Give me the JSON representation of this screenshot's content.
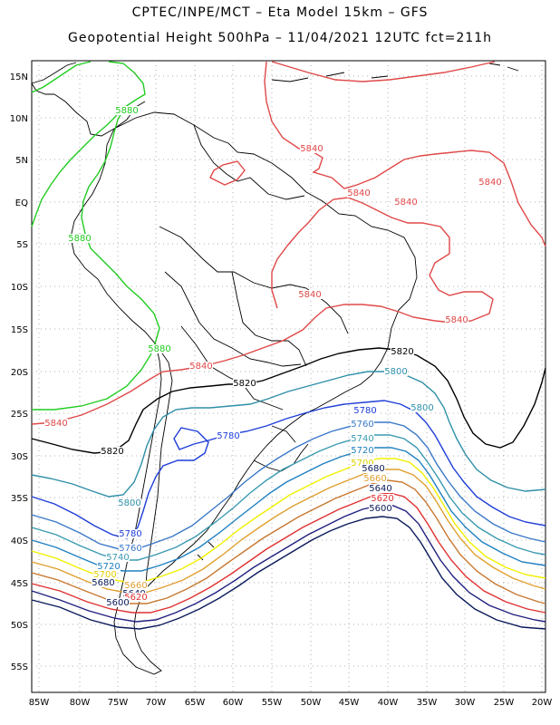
{
  "header": {
    "line1": "CPTEC/INPE/MCT – Eta Model 15km – GFS",
    "line2": "Geopotential Height 500hPa – 11/04/2021 12UTC fct=211h"
  },
  "axes": {
    "lat_labels": [
      "15N",
      "10N",
      "5N",
      "EQ",
      "5S",
      "10S",
      "15S",
      "20S",
      "25S",
      "30S",
      "35S",
      "40S",
      "45S",
      "50S",
      "55S"
    ],
    "lon_labels": [
      "85W",
      "80W",
      "75W",
      "70W",
      "65W",
      "60W",
      "55W",
      "50W",
      "45W",
      "40W",
      "35W",
      "30W",
      "25W",
      "20W"
    ]
  },
  "colors": {
    "c5880": "#22cc22",
    "c5840": "#e04848",
    "c5820": "#000000",
    "c5800": "#2e8fa8",
    "c5780": "#1e3ed8",
    "c5760": "#3a78c8",
    "c5740": "#3a9ab0",
    "c5720": "#2080c0",
    "c5700": "#f0f000",
    "c5680": "#e0a030",
    "c5660": "#c87830",
    "c5640": "#e03030",
    "c5620": "#202080",
    "c5600": "#0a1a5a",
    "grid": "#999999",
    "coast": "#000000"
  },
  "contour_labels": [
    {
      "text": "5880",
      "color": "#22cc22"
    },
    {
      "text": "5880",
      "color": "#22cc22"
    },
    {
      "text": "5880",
      "color": "#22cc22"
    },
    {
      "text": "5840",
      "color": "#e04848"
    },
    {
      "text": "5840",
      "color": "#e04848"
    },
    {
      "text": "5840",
      "color": "#e04848"
    },
    {
      "text": "5840",
      "color": "#e04848"
    },
    {
      "text": "5840",
      "color": "#e04848"
    },
    {
      "text": "5840",
      "color": "#e04848"
    },
    {
      "text": "5840",
      "color": "#e04848"
    },
    {
      "text": "5840",
      "color": "#e04848"
    },
    {
      "text": "5820",
      "color": "#000000"
    },
    {
      "text": "5820",
      "color": "#000000"
    },
    {
      "text": "5820",
      "color": "#000000"
    },
    {
      "text": "5800",
      "color": "#2e8fa8"
    },
    {
      "text": "5800",
      "color": "#2e8fa8"
    },
    {
      "text": "5800",
      "color": "#2e8fa8"
    },
    {
      "text": "5780",
      "color": "#1e3ed8"
    },
    {
      "text": "5780",
      "color": "#1e3ed8"
    },
    {
      "text": "5780",
      "color": "#1e3ed8"
    },
    {
      "text": "5760",
      "color": "#3a78c8"
    },
    {
      "text": "5760",
      "color": "#3a78c8"
    },
    {
      "text": "5740",
      "color": "#3a9ab0"
    },
    {
      "text": "5740",
      "color": "#3a9ab0"
    },
    {
      "text": "5720",
      "color": "#2080c0"
    },
    {
      "text": "5720",
      "color": "#2080c0"
    },
    {
      "text": "5700",
      "color": "#e0d000"
    },
    {
      "text": "5700",
      "color": "#e0d000"
    },
    {
      "text": "5680",
      "color": "#0a1a5a"
    },
    {
      "text": "5680",
      "color": "#0a1a5a"
    },
    {
      "text": "5660",
      "color": "#e0a030"
    },
    {
      "text": "5660",
      "color": "#e0a030"
    },
    {
      "text": "5640",
      "color": "#0a1a5a"
    },
    {
      "text": "5640",
      "color": "#0a1a5a"
    },
    {
      "text": "5620",
      "color": "#e03030"
    },
    {
      "text": "5620",
      "color": "#e03030"
    },
    {
      "text": "5600",
      "color": "#0a1a5a"
    },
    {
      "text": "5600",
      "color": "#0a1a5a"
    }
  ]
}
